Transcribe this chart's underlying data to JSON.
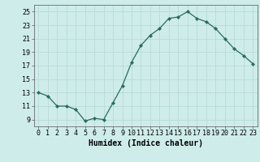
{
  "x": [
    0,
    1,
    2,
    3,
    4,
    5,
    6,
    7,
    8,
    9,
    10,
    11,
    12,
    13,
    14,
    15,
    16,
    17,
    18,
    19,
    20,
    21,
    22,
    23
  ],
  "y": [
    13,
    12.5,
    11,
    11,
    10.5,
    8.8,
    9.2,
    9,
    11.5,
    14,
    17.5,
    20,
    21.5,
    22.5,
    24,
    24.2,
    25,
    24,
    23.5,
    22.5,
    21,
    19.5,
    18.5,
    17.3
  ],
  "line_color": "#2a6b5e",
  "marker_color": "#2a6b5e",
  "background_color": "#ceecea",
  "grid_color": "#b8dbd9",
  "xlabel": "Humidex (Indice chaleur)",
  "xlim": [
    -0.5,
    23.5
  ],
  "ylim": [
    8,
    26
  ],
  "yticks": [
    9,
    11,
    13,
    15,
    17,
    19,
    21,
    23,
    25
  ],
  "xticks": [
    0,
    1,
    2,
    3,
    4,
    5,
    6,
    7,
    8,
    9,
    10,
    11,
    12,
    13,
    14,
    15,
    16,
    17,
    18,
    19,
    20,
    21,
    22,
    23
  ],
  "xlabel_fontsize": 7,
  "tick_fontsize": 6
}
